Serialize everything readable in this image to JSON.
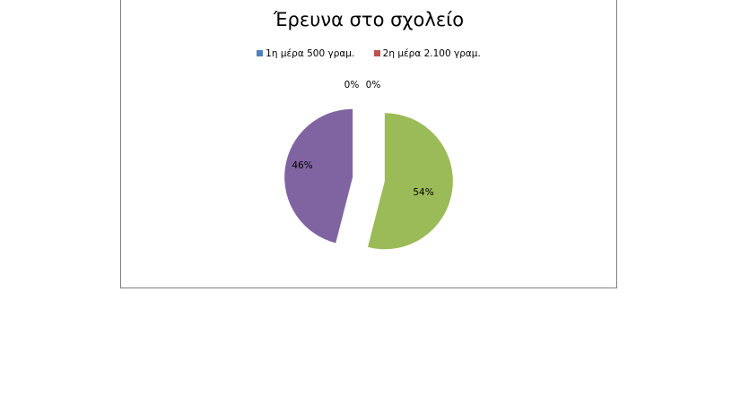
{
  "chart_data": {
    "type": "pie",
    "title": "Έρευνα στο σχολείο",
    "legend_position": "top",
    "categories": [
      "1η μέρα 500 γραμ.",
      "2η μέρα 2.100 γραμ.",
      "",
      ""
    ],
    "values": [
      0,
      0,
      54,
      46
    ],
    "data_labels": [
      "0%",
      "0%",
      "54%",
      "46%"
    ],
    "colors": [
      "#4f81bd",
      "#c0504d",
      "#9bbb59",
      "#8064a2"
    ],
    "exploded": true
  }
}
